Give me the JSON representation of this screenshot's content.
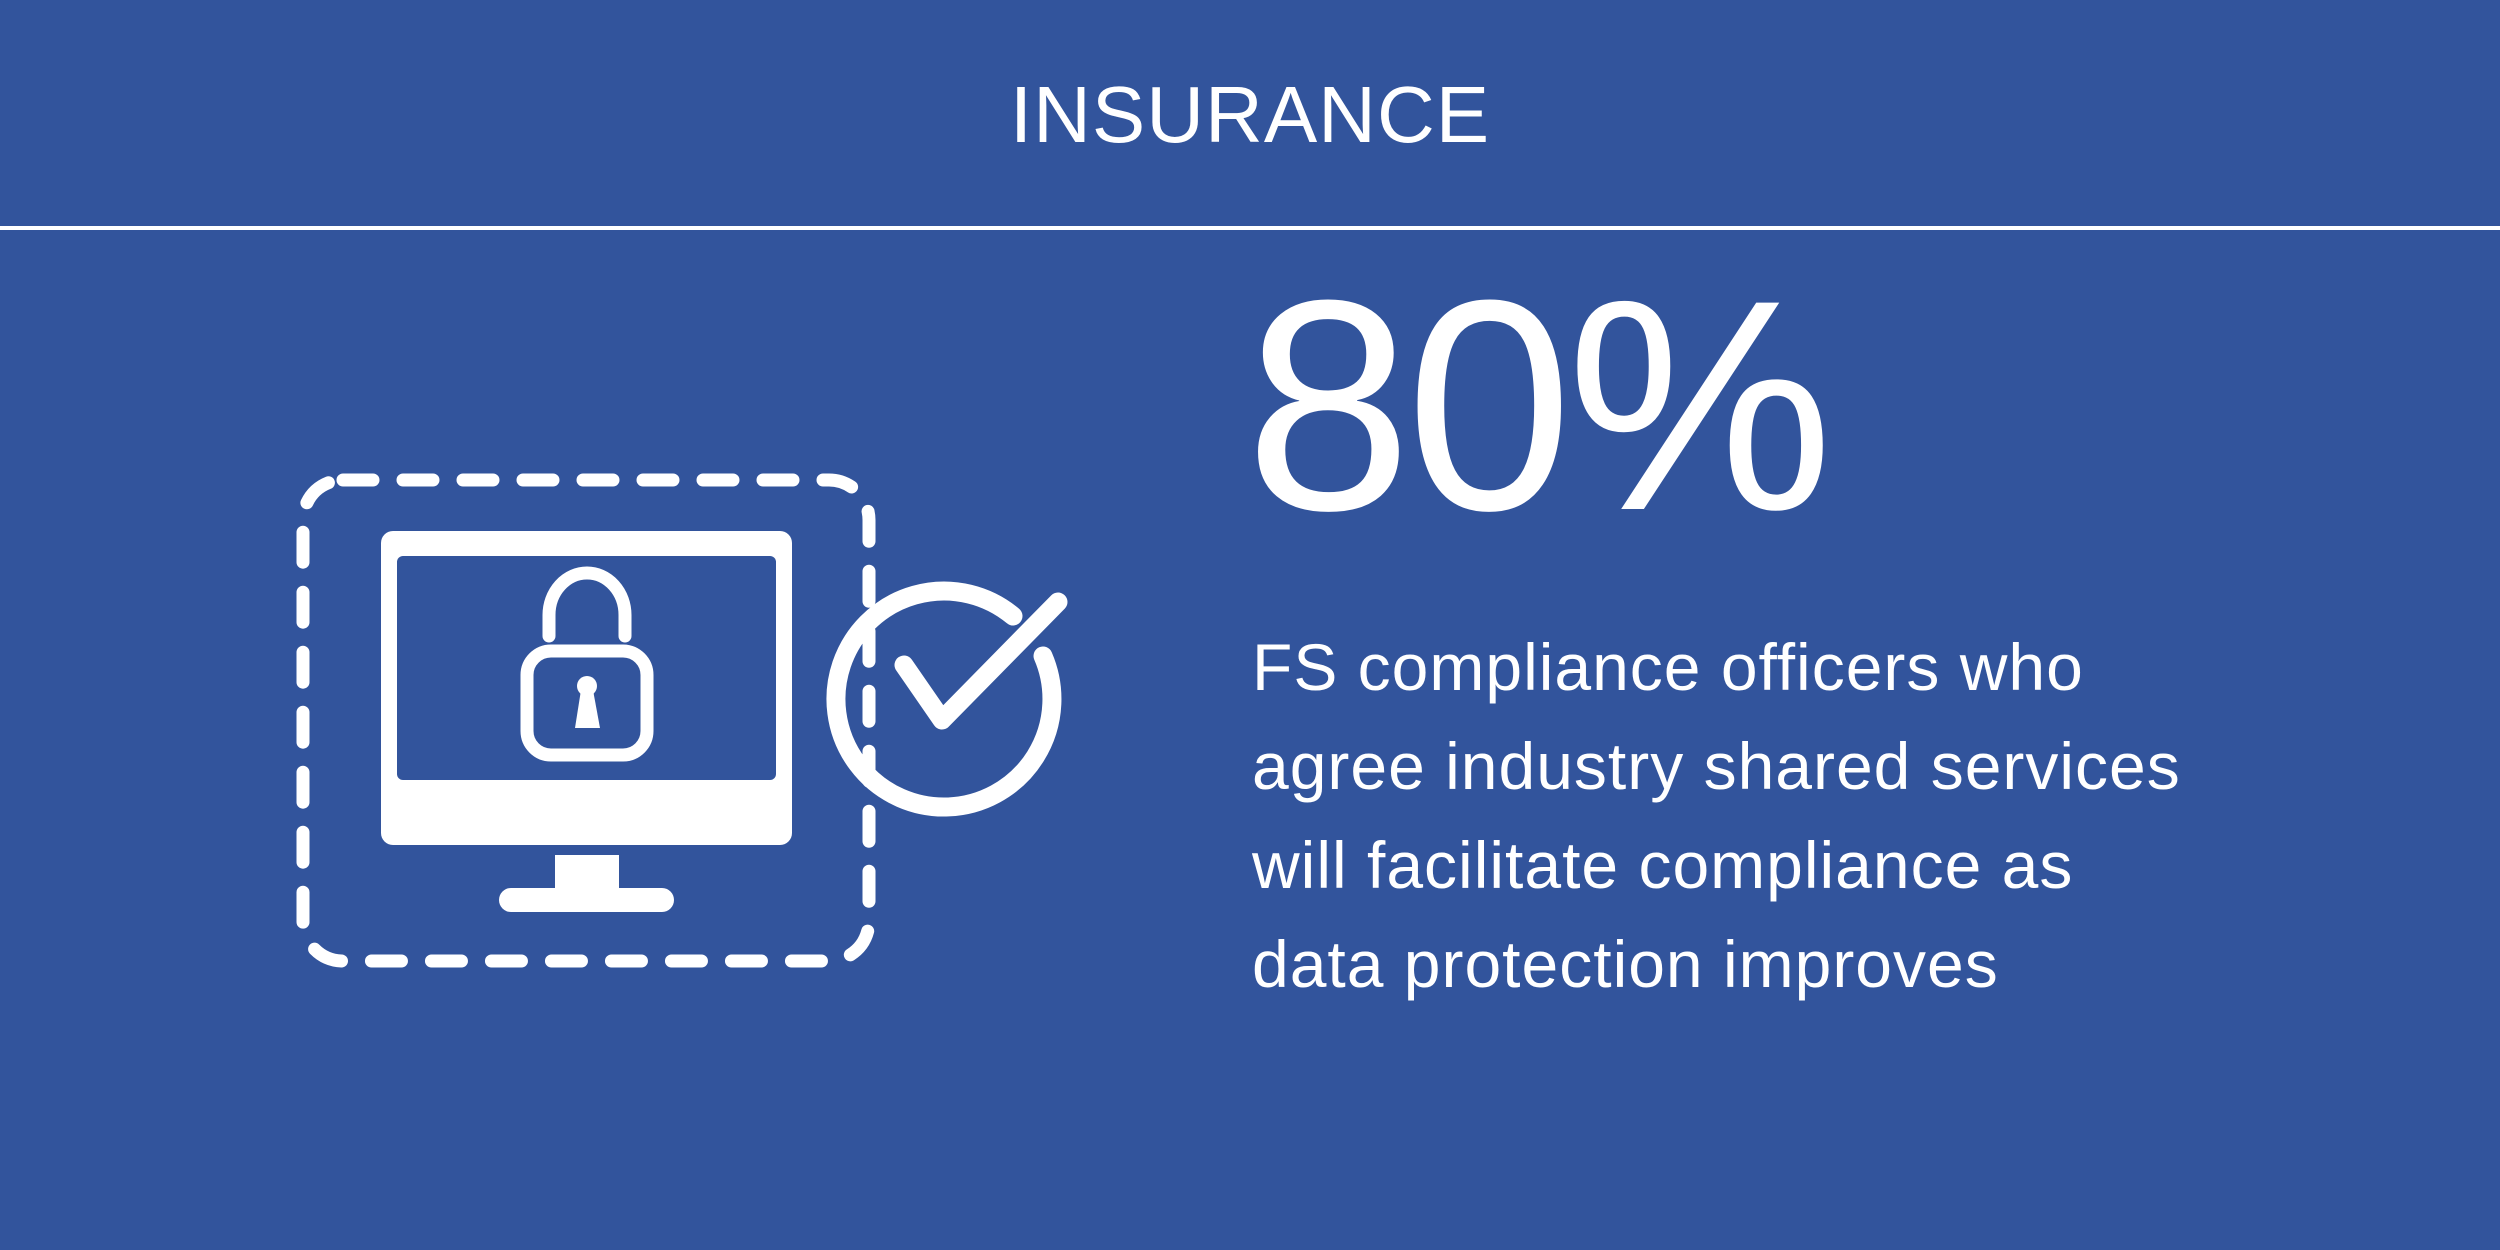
{
  "header": {
    "title": "INSURANCE"
  },
  "stat": {
    "value": "80%",
    "description_lines": [
      "FS compliance officers who",
      "agree industry shared services",
      "will facilitate compliance as",
      "data protection improves"
    ]
  },
  "icon": {
    "name": "secure-computer-check-icon"
  },
  "colors": {
    "background": "#32549c",
    "foreground": "#ffffff"
  }
}
